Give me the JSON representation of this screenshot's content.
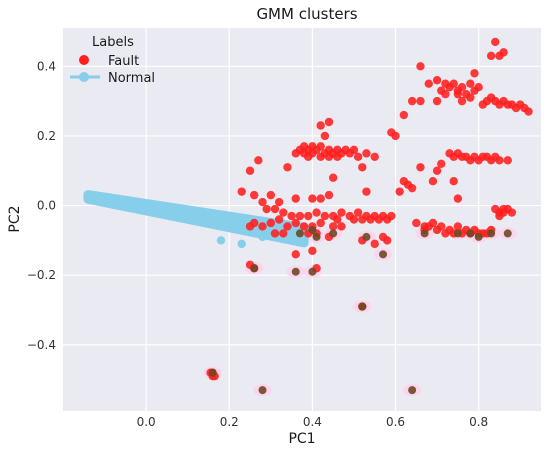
{
  "chart_data": {
    "type": "scatter",
    "title": "GMM clusters",
    "xlabel": "PC1",
    "ylabel": "PC2",
    "xlim": [
      -0.2,
      0.95
    ],
    "ylim": [
      -0.59,
      0.51
    ],
    "xticks": [
      0.0,
      0.2,
      0.4,
      0.6,
      0.8
    ],
    "yticks": [
      -0.4,
      -0.2,
      0.0,
      0.2,
      0.4
    ],
    "xtick_labels": [
      "0.0",
      "0.2",
      "0.4",
      "0.6",
      "0.8"
    ],
    "ytick_labels": [
      "−0.4",
      "−0.2",
      "0.0",
      "0.2",
      "0.4"
    ],
    "grid": true,
    "legend": {
      "title": "Labels",
      "placement": "top-left",
      "entries": [
        {
          "label": "Fault",
          "color": "#ff1f1f"
        },
        {
          "label": "Normal",
          "color": "#87ceeb"
        }
      ]
    },
    "colors": {
      "background": "#eaeaf2",
      "grid": "#ffffff",
      "fault": "#ff1f1f",
      "normal": "#87ceeb",
      "gmm_overlay": "#6b4a22",
      "halo": "#ffd0ec"
    },
    "series": [
      {
        "name": "Fault",
        "color": "#ff1f1f",
        "points": [
          [
            0.84,
            0.47
          ],
          [
            0.86,
            0.44
          ],
          [
            0.85,
            0.43
          ],
          [
            0.83,
            0.43
          ],
          [
            0.79,
            0.38
          ],
          [
            0.66,
            0.4
          ],
          [
            0.7,
            0.36
          ],
          [
            0.72,
            0.35
          ],
          [
            0.74,
            0.35
          ],
          [
            0.76,
            0.34
          ],
          [
            0.78,
            0.35
          ],
          [
            0.8,
            0.34
          ],
          [
            0.71,
            0.33
          ],
          [
            0.73,
            0.34
          ],
          [
            0.75,
            0.33
          ],
          [
            0.77,
            0.32
          ],
          [
            0.79,
            0.33
          ],
          [
            0.72,
            0.32
          ],
          [
            0.75,
            0.32
          ],
          [
            0.68,
            0.35
          ],
          [
            0.76,
            0.3
          ],
          [
            0.78,
            0.31
          ],
          [
            0.7,
            0.3
          ],
          [
            0.82,
            0.3
          ],
          [
            0.84,
            0.3
          ],
          [
            0.86,
            0.3
          ],
          [
            0.88,
            0.29
          ],
          [
            0.9,
            0.29
          ],
          [
            0.85,
            0.29
          ],
          [
            0.87,
            0.29
          ],
          [
            0.89,
            0.28
          ],
          [
            0.91,
            0.28
          ],
          [
            0.83,
            0.31
          ],
          [
            0.81,
            0.29
          ],
          [
            0.92,
            0.27
          ],
          [
            0.66,
            0.3
          ],
          [
            0.64,
            0.3
          ],
          [
            0.62,
            0.26
          ],
          [
            0.6,
            0.2
          ],
          [
            0.59,
            0.21
          ],
          [
            0.44,
            0.24
          ],
          [
            0.42,
            0.23
          ],
          [
            0.43,
            0.2
          ],
          [
            0.36,
            0.15
          ],
          [
            0.37,
            0.16
          ],
          [
            0.38,
            0.17
          ],
          [
            0.39,
            0.16
          ],
          [
            0.4,
            0.15
          ],
          [
            0.41,
            0.16
          ],
          [
            0.42,
            0.17
          ],
          [
            0.43,
            0.15
          ],
          [
            0.44,
            0.16
          ],
          [
            0.45,
            0.15
          ],
          [
            0.46,
            0.14
          ],
          [
            0.47,
            0.15
          ],
          [
            0.48,
            0.16
          ],
          [
            0.49,
            0.15
          ],
          [
            0.5,
            0.16
          ],
          [
            0.51,
            0.14
          ],
          [
            0.53,
            0.15
          ],
          [
            0.55,
            0.14
          ],
          [
            0.38,
            0.15
          ],
          [
            0.4,
            0.17
          ],
          [
            0.46,
            0.16
          ],
          [
            0.44,
            0.14
          ],
          [
            0.39,
            0.14
          ],
          [
            0.42,
            0.14
          ],
          [
            0.27,
            0.13
          ],
          [
            0.25,
            0.1
          ],
          [
            0.34,
            0.11
          ],
          [
            0.52,
            0.11
          ],
          [
            0.73,
            0.15
          ],
          [
            0.75,
            0.15
          ],
          [
            0.77,
            0.14
          ],
          [
            0.79,
            0.14
          ],
          [
            0.81,
            0.14
          ],
          [
            0.83,
            0.13
          ],
          [
            0.85,
            0.13
          ],
          [
            0.87,
            0.13
          ],
          [
            0.76,
            0.14
          ],
          [
            0.8,
            0.13
          ],
          [
            0.84,
            0.14
          ],
          [
            0.78,
            0.13
          ],
          [
            0.74,
            0.14
          ],
          [
            0.82,
            0.14
          ],
          [
            0.71,
            0.12
          ],
          [
            0.66,
            0.11
          ],
          [
            0.7,
            0.1
          ],
          [
            0.69,
            0.07
          ],
          [
            0.62,
            0.07
          ],
          [
            0.63,
            0.06
          ],
          [
            0.74,
            0.07
          ],
          [
            0.75,
            0.02
          ],
          [
            0.53,
            0.04
          ],
          [
            0.45,
            0.08
          ],
          [
            0.64,
            0.05
          ],
          [
            0.61,
            0.04
          ],
          [
            0.23,
            0.04
          ],
          [
            0.26,
            0.03
          ],
          [
            0.28,
            0.01
          ],
          [
            0.3,
            0.03
          ],
          [
            0.32,
            0.01
          ],
          [
            0.36,
            0.02
          ],
          [
            0.4,
            0.02
          ],
          [
            0.42,
            0.02
          ],
          [
            0.44,
            0.03
          ],
          [
            0.29,
            -0.01
          ],
          [
            0.31,
            -0.01
          ],
          [
            0.33,
            -0.02
          ],
          [
            0.35,
            -0.03
          ],
          [
            0.37,
            -0.03
          ],
          [
            0.39,
            -0.03
          ],
          [
            0.41,
            -0.02
          ],
          [
            0.43,
            -0.03
          ],
          [
            0.45,
            -0.03
          ],
          [
            0.47,
            -0.02
          ],
          [
            0.49,
            -0.03
          ],
          [
            0.51,
            -0.02
          ],
          [
            0.53,
            -0.03
          ],
          [
            0.55,
            -0.03
          ],
          [
            0.57,
            -0.03
          ],
          [
            0.59,
            -0.03
          ],
          [
            0.5,
            -0.04
          ],
          [
            0.46,
            -0.04
          ],
          [
            0.52,
            -0.04
          ],
          [
            0.54,
            -0.04
          ],
          [
            0.56,
            -0.04
          ],
          [
            0.58,
            -0.04
          ],
          [
            0.42,
            -0.05
          ],
          [
            0.4,
            -0.06
          ],
          [
            0.38,
            -0.06
          ],
          [
            0.36,
            -0.05
          ],
          [
            0.34,
            -0.06
          ],
          [
            0.32,
            -0.04
          ],
          [
            0.3,
            -0.05
          ],
          [
            0.28,
            -0.06
          ],
          [
            0.45,
            -0.06
          ],
          [
            0.47,
            -0.06
          ],
          [
            0.33,
            -0.08
          ],
          [
            0.31,
            -0.08
          ],
          [
            0.39,
            -0.08
          ],
          [
            0.41,
            -0.08
          ],
          [
            0.44,
            -0.09
          ],
          [
            0.52,
            -0.1
          ],
          [
            0.26,
            -0.05
          ],
          [
            0.25,
            -0.06
          ],
          [
            0.57,
            -0.09
          ],
          [
            0.55,
            -0.11
          ],
          [
            0.58,
            -0.1
          ],
          [
            0.65,
            -0.05
          ],
          [
            0.67,
            -0.06
          ],
          [
            0.69,
            -0.05
          ],
          [
            0.71,
            -0.06
          ],
          [
            0.73,
            -0.07
          ],
          [
            0.75,
            -0.06
          ],
          [
            0.77,
            -0.07
          ],
          [
            0.79,
            -0.07
          ],
          [
            0.81,
            -0.08
          ],
          [
            0.83,
            -0.07
          ],
          [
            0.72,
            -0.08
          ],
          [
            0.76,
            -0.08
          ],
          [
            0.8,
            -0.08
          ],
          [
            0.7,
            -0.07
          ],
          [
            0.74,
            -0.08
          ],
          [
            0.78,
            -0.08
          ],
          [
            0.82,
            -0.08
          ],
          [
            0.68,
            -0.06
          ],
          [
            0.67,
            -0.07
          ],
          [
            0.84,
            -0.01
          ],
          [
            0.85,
            -0.02
          ],
          [
            0.86,
            -0.02
          ],
          [
            0.87,
            -0.01
          ],
          [
            0.88,
            -0.02
          ],
          [
            0.86,
            -0.01
          ],
          [
            0.85,
            -0.03
          ],
          [
            0.25,
            -0.17
          ],
          [
            0.26,
            -0.18
          ],
          [
            0.36,
            -0.14
          ],
          [
            0.4,
            -0.13
          ],
          [
            0.41,
            -0.18
          ],
          [
            0.52,
            -0.29
          ],
          [
            0.16,
            -0.49
          ],
          [
            0.165,
            -0.49
          ],
          [
            0.155,
            -0.48
          ],
          [
            0.16,
            -0.48
          ]
        ]
      },
      {
        "name": "Normal",
        "color": "#87ceeb",
        "band": {
          "x": [
            -0.14,
            0.38
          ],
          "y_at_start": 0.025,
          "y_at_end": -0.085,
          "spread": 0.022
        },
        "points": [
          [
            0.18,
            -0.1
          ],
          [
            0.23,
            -0.11
          ],
          [
            0.28,
            -0.09
          ],
          [
            0.33,
            -0.06
          ],
          [
            0.36,
            -0.08
          ]
        ]
      },
      {
        "name": "GMM overlay",
        "color": "#6b4a22",
        "points": [
          [
            0.16,
            -0.48
          ],
          [
            0.28,
            -0.53
          ],
          [
            0.64,
            -0.53
          ],
          [
            0.52,
            -0.29
          ],
          [
            0.26,
            -0.18
          ],
          [
            0.36,
            -0.19
          ],
          [
            0.4,
            -0.19
          ],
          [
            0.57,
            -0.14
          ],
          [
            0.4,
            -0.07
          ],
          [
            0.41,
            -0.09
          ],
          [
            0.45,
            -0.08
          ],
          [
            0.53,
            -0.09
          ],
          [
            0.67,
            -0.08
          ],
          [
            0.75,
            -0.08
          ],
          [
            0.78,
            -0.08
          ],
          [
            0.8,
            -0.09
          ],
          [
            0.83,
            -0.08
          ],
          [
            0.87,
            -0.08
          ],
          [
            0.37,
            -0.08
          ]
        ]
      }
    ]
  }
}
